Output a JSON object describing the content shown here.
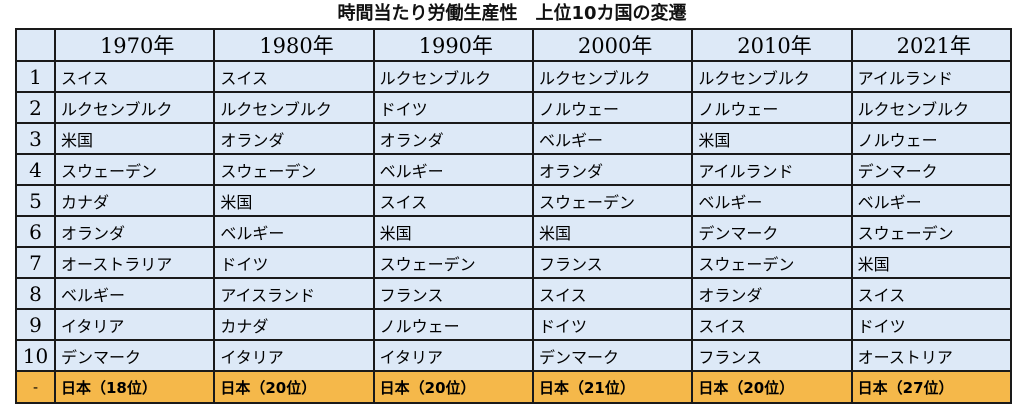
{
  "title": "時間当たり労働生産性　上位10カ国の変遷",
  "headers": [
    "",
    "1970年",
    "1980年",
    "1990年",
    "2000年",
    "2010年",
    "2021年"
  ],
  "rows": [
    {
      "rank": "1",
      "countries": [
        "スイス",
        "スイス",
        "ルクセンブルク",
        "ルクセンブルク",
        "ルクセンブルク",
        "アイルランド"
      ]
    },
    {
      "rank": "2",
      "countries": [
        "ルクセンブルク",
        "ルクセンブルク",
        "ドイツ",
        "ノルウェー",
        "ノルウェー",
        "ルクセンブルク"
      ]
    },
    {
      "rank": "3",
      "countries": [
        "米国",
        "オランダ",
        "オランダ",
        "ベルギー",
        "米国",
        "ノルウェー"
      ]
    },
    {
      "rank": "4",
      "countries": [
        "スウェーデン",
        "スウェーデン",
        "ベルギー",
        "オランダ",
        "アイルランド",
        "デンマーク"
      ]
    },
    {
      "rank": "5",
      "countries": [
        "カナダ",
        "米国",
        "スイス",
        "スウェーデン",
        "ベルギー",
        "ベルギー"
      ]
    },
    {
      "rank": "6",
      "countries": [
        "オランダ",
        "ベルギー",
        "米国",
        "米国",
        "デンマーク",
        "スウェーデン"
      ]
    },
    {
      "rank": "7",
      "countries": [
        "オーストラリア",
        "ドイツ",
        "スウェーデン",
        "フランス",
        "スウェーデン",
        "米国"
      ]
    },
    {
      "rank": "8",
      "countries": [
        "ベルギー",
        "アイスランド",
        "フランス",
        "スイス",
        "オランダ",
        "スイス"
      ]
    },
    {
      "rank": "9",
      "countries": [
        "イタリア",
        "カナダ",
        "ノルウェー",
        "ドイツ",
        "スイス",
        "ドイツ"
      ]
    },
    {
      "rank": "10",
      "countries": [
        "デンマーク",
        "イタリア",
        "イタリア",
        "デンマーク",
        "フランス",
        "オーストリア"
      ]
    }
  ],
  "japan_row": {
    "rank": "-",
    "values": [
      "日本（18位）",
      "日本（20位）",
      "日本（20位）",
      "日本（21位）",
      "日本（20位）",
      "日本（27位）"
    ]
  },
  "colors": {
    "cell_background": "#dde9f7",
    "japan_row_background": "#f5b84a",
    "border": "#1a1a1a"
  }
}
